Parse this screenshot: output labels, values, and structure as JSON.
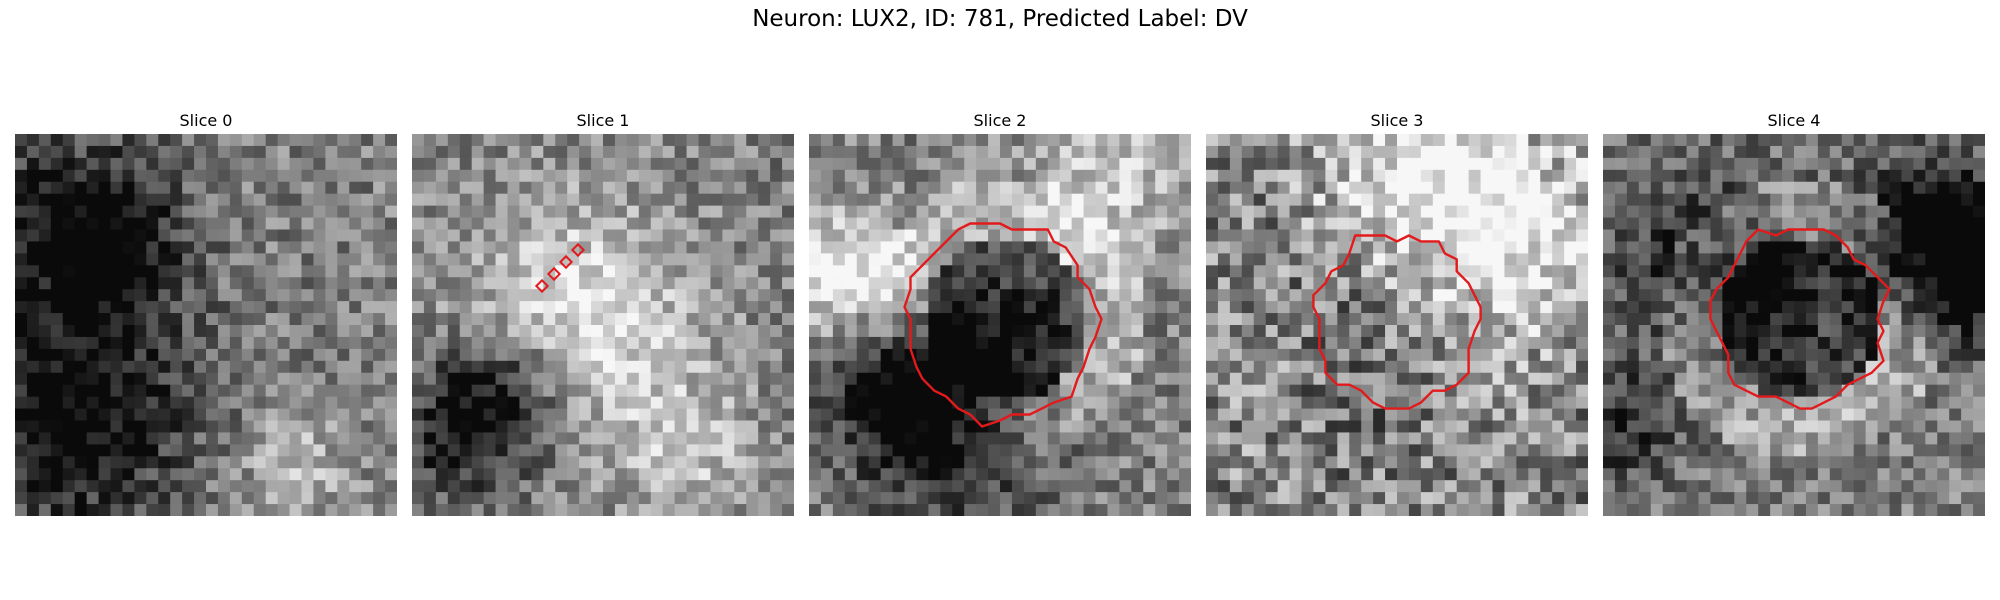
{
  "figure": {
    "title": "Neuron: LUX2, ID: 781, Predicted Label: DV"
  },
  "slices": [
    {
      "label": "Slice 0",
      "overlay": "none",
      "seed": 11,
      "tone": "mixed"
    },
    {
      "label": "Slice 1",
      "overlay": "markers",
      "seed": 23,
      "tone": "mixed"
    },
    {
      "label": "Slice 2",
      "overlay": "contour",
      "seed": 37,
      "tone": "ring"
    },
    {
      "label": "Slice 3",
      "overlay": "contour",
      "seed": 51,
      "tone": "noisy"
    },
    {
      "label": "Slice 4",
      "overlay": "contour",
      "seed": 67,
      "tone": "ring"
    }
  ],
  "colors": {
    "overlay": "#e31a1c"
  },
  "image_grid_size": 32
}
